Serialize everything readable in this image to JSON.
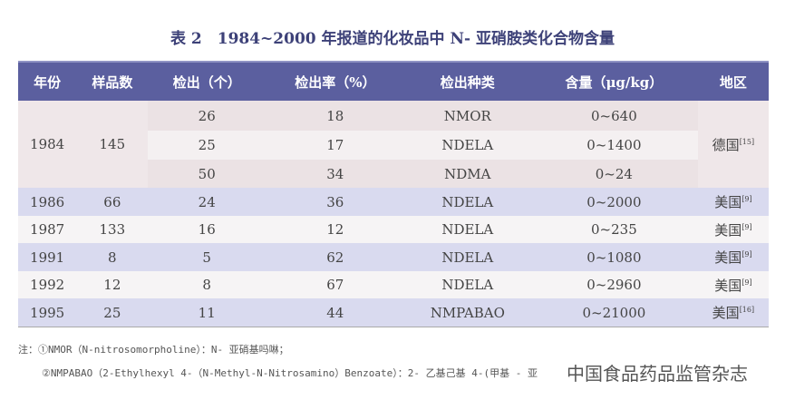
{
  "title": "表 2　1984~2000 年报道的化妆品中 N- 亚硝胺类化合物含量",
  "headers": [
    "年份",
    "样品数",
    "检出（个）",
    "检出率（%）",
    "检出种类",
    "含量（μg/kg）",
    "地区"
  ],
  "group1984": {
    "year": "1984",
    "samples": "145",
    "region": "德国",
    "ref": "[15]",
    "rows": [
      {
        "count": "26",
        "rate": "18",
        "kind": "NMOR",
        "content": "0~640"
      },
      {
        "count": "25",
        "rate": "17",
        "kind": "NDELA",
        "content": "0~1400"
      },
      {
        "count": "50",
        "rate": "34",
        "kind": "NDMA",
        "content": "0~24"
      }
    ]
  },
  "rows": [
    {
      "year": "1986",
      "samples": "66",
      "count": "24",
      "rate": "36",
      "kind": "NDELA",
      "content": "0~2000",
      "region": "美国",
      "ref": "[9]"
    },
    {
      "year": "1987",
      "samples": "133",
      "count": "16",
      "rate": "12",
      "kind": "NDELA",
      "content": "0~235",
      "region": "美国",
      "ref": "[9]"
    },
    {
      "year": "1991",
      "samples": "8",
      "count": "5",
      "rate": "62",
      "kind": "NDELA",
      "content": "0~1080",
      "region": "美国",
      "ref": "[9]"
    },
    {
      "year": "1992",
      "samples": "12",
      "count": "8",
      "rate": "67",
      "kind": "NDELA",
      "content": "0~2960",
      "region": "美国",
      "ref": "[9]"
    },
    {
      "year": "1995",
      "samples": "25",
      "count": "11",
      "rate": "44",
      "kind": "NMPABAO",
      "content": "0~21000",
      "region": "美国",
      "ref": "[16]"
    }
  ],
  "notes": [
    "注：①NMOR（N-nitrosomorpholine）：N- 亚硝基吗啉；",
    "②NMPABAO（2-Ethylhexyl 4-（N-Methyl-N-Nitrosamino）Benzoate）：2- 乙基己基 4-(甲基 - 亚"
  ],
  "watermark": "中国食品药品监管杂志"
}
